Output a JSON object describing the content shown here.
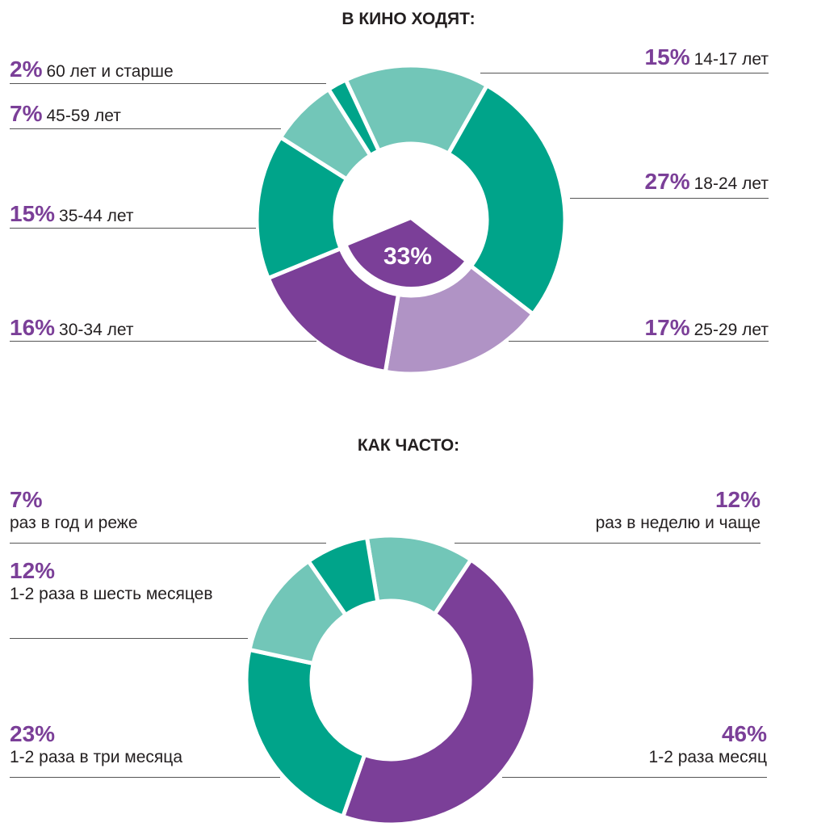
{
  "chart_data": [
    {
      "type": "pie",
      "title": "В КИНО ХОДЯТ:",
      "categories": [
        "14-17 лет",
        "18-24 лет",
        "25-29 лет",
        "30-34 лет",
        "35-44 лет",
        "45-59 лет",
        "60 лет и старше"
      ],
      "values": [
        15,
        27,
        17,
        16,
        15,
        7,
        2
      ],
      "value_labels": [
        "15%",
        "27%",
        "17%",
        "16%",
        "15%",
        "7%",
        "2%"
      ],
      "colors": [
        "#72c6b8",
        "#00a48a",
        "#b093c5",
        "#7b3f98",
        "#00a48a",
        "#72c6b8",
        "#00a48a"
      ],
      "highlight": {
        "label": "33%",
        "value": 33,
        "covers": [
          "25-29 лет",
          "30-34 лет"
        ],
        "color": "#7b3f98"
      }
    },
    {
      "type": "pie",
      "title": "КАК ЧАСТО:",
      "categories": [
        "раз в неделю и чаще",
        "1-2  раза месяц",
        "1-2  раза в три месяца",
        "1-2  раза в шесть месяцев",
        "раз в год и реже"
      ],
      "values": [
        12,
        46,
        23,
        12,
        7
      ],
      "value_labels": [
        "12%",
        "46%",
        "23%",
        "12%",
        "7%"
      ],
      "colors": [
        "#72c6b8",
        "#7b3f98",
        "#00a48a",
        "#72c6b8",
        "#00a48a"
      ]
    }
  ]
}
